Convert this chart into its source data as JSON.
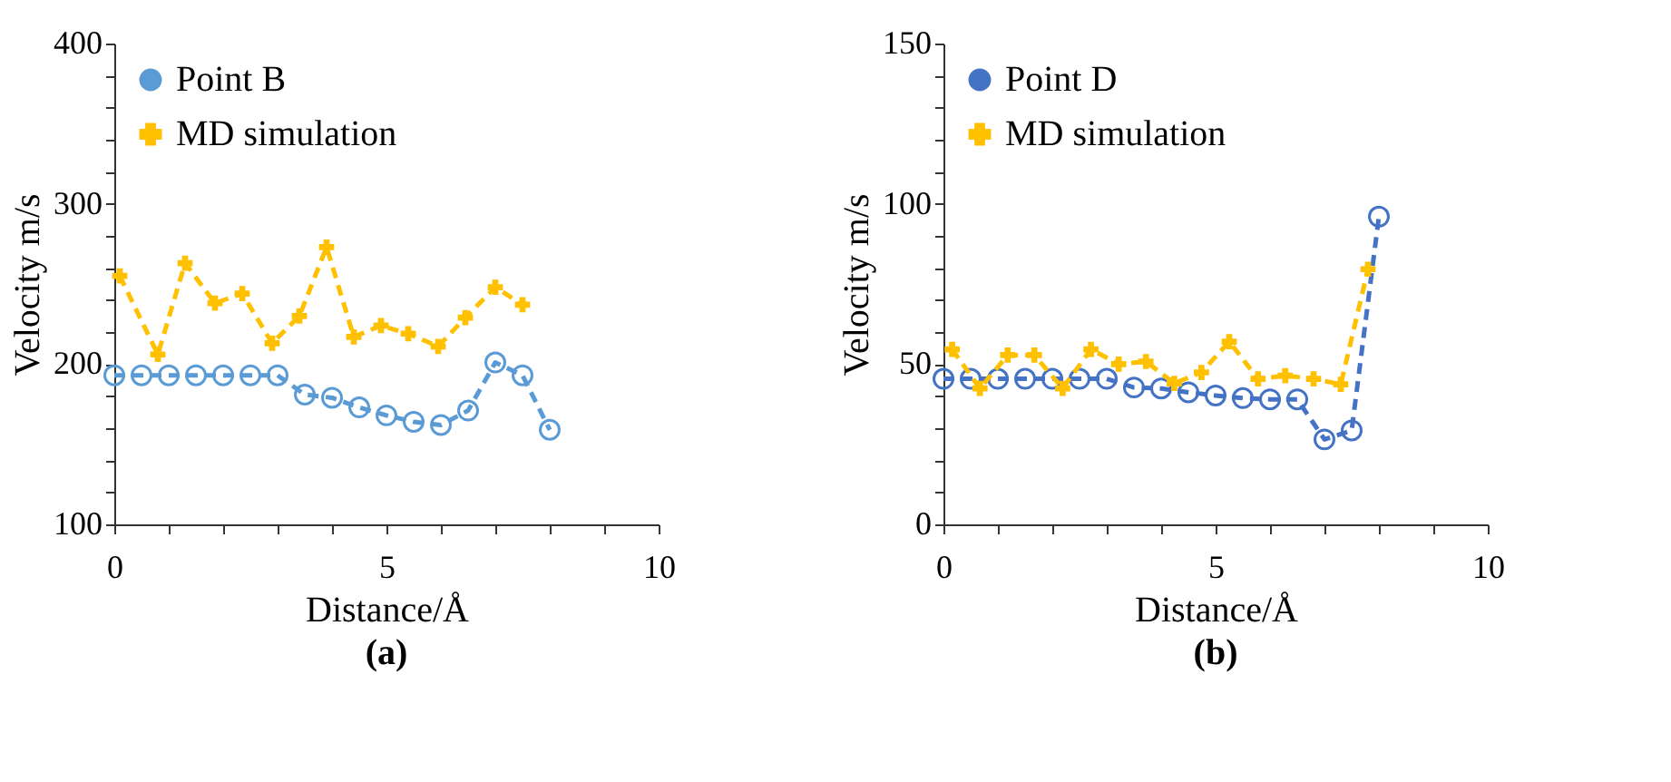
{
  "chart_data": [
    {
      "type": "line",
      "title": "(a)",
      "xlabel": "Distance/Å",
      "ylabel": "Velocity m/s",
      "xlim": [
        0,
        10
      ],
      "ylim": [
        100,
        400
      ],
      "xticks": [
        0,
        {
          "value": 1,
          "label": null
        },
        {
          "value": 2,
          "label": null
        },
        {
          "value": 3,
          "label": null
        },
        {
          "value": 4,
          "label": null
        },
        5,
        {
          "value": 6,
          "label": null
        },
        {
          "value": 7,
          "label": null
        },
        {
          "value": 8,
          "label": null
        },
        {
          "value": 9,
          "label": null
        },
        10
      ],
      "yticks": [
        100,
        {
          "value": 120,
          "label": null
        },
        {
          "value": 140,
          "label": null
        },
        {
          "value": 160,
          "label": null
        },
        {
          "value": 180,
          "label": null
        },
        200,
        {
          "value": 220,
          "label": null
        },
        {
          "value": 240,
          "label": null
        },
        {
          "value": 260,
          "label": null
        },
        {
          "value": 280,
          "label": null
        },
        300,
        {
          "value": 320,
          "label": null
        },
        {
          "value": 340,
          "label": null
        },
        {
          "value": 360,
          "label": null
        },
        {
          "value": 380,
          "label": null
        },
        400
      ],
      "grid": false,
      "legend": "top left",
      "series": [
        {
          "name": "Point B",
          "color": "#5b9bd5",
          "marker": "circle",
          "line_style": "dashed",
          "x": [
            0,
            0.5,
            1,
            1.5,
            2,
            2.5,
            3,
            3.5,
            4,
            4.5,
            5,
            5.5,
            6,
            6.5,
            7,
            7.5,
            8
          ],
          "values": [
            193,
            193,
            193,
            193,
            193,
            193,
            193,
            181,
            179,
            173,
            168,
            164,
            162,
            171,
            201,
            193,
            159
          ]
        },
        {
          "name": "MD simulation",
          "color": "#ffc000",
          "marker": "cross",
          "line_style": "dashed",
          "x": [
            0.1,
            0.8,
            1.3,
            1.85,
            2.35,
            2.9,
            3.4,
            3.9,
            4.4,
            4.9,
            5.4,
            5.95,
            6.45,
            7.0,
            7.5
          ],
          "values": [
            255,
            206,
            263,
            238,
            244,
            213,
            230,
            273,
            217,
            224,
            219,
            211,
            229,
            248,
            237
          ]
        }
      ]
    },
    {
      "type": "line",
      "title": "(b)",
      "xlabel": "Distance/Å",
      "ylabel": "Velocity m/s",
      "xlim": [
        0,
        10
      ],
      "ylim": [
        0,
        150
      ],
      "xticks": [
        0,
        {
          "value": 1,
          "label": null
        },
        {
          "value": 2,
          "label": null
        },
        {
          "value": 3,
          "label": null
        },
        {
          "value": 4,
          "label": null
        },
        5,
        {
          "value": 6,
          "label": null
        },
        {
          "value": 7,
          "label": null
        },
        {
          "value": 8,
          "label": null
        },
        {
          "value": 9,
          "label": null
        },
        10
      ],
      "yticks": [
        0,
        {
          "value": 10,
          "label": null
        },
        {
          "value": 20,
          "label": null
        },
        {
          "value": 30,
          "label": null
        },
        {
          "value": 40,
          "label": null
        },
        50,
        {
          "value": 60,
          "label": null
        },
        {
          "value": 70,
          "label": null
        },
        {
          "value": 80,
          "label": null
        },
        {
          "value": 90,
          "label": null
        },
        100,
        {
          "value": 110,
          "label": null
        },
        {
          "value": 120,
          "label": null
        },
        {
          "value": 130,
          "label": null
        },
        {
          "value": 140,
          "label": null
        },
        150
      ],
      "grid": false,
      "legend": "top left",
      "series": [
        {
          "name": "Point D",
          "color": "#4472c4",
          "marker": "circle",
          "line_style": "dashed",
          "x": [
            0,
            0.5,
            1,
            1.5,
            2,
            2.5,
            3,
            3.5,
            4,
            4.5,
            5,
            5.5,
            6,
            6.5,
            7,
            7.5,
            8
          ],
          "values": [
            45.4,
            45.4,
            45.4,
            45.4,
            45.4,
            45.4,
            45.4,
            42.7,
            42.4,
            41.2,
            40.2,
            39.4,
            39,
            39,
            26.5,
            29.3,
            96
          ]
        },
        {
          "name": "MD simulation",
          "color": "#ffc000",
          "marker": "cross",
          "line_style": "dashed",
          "x": [
            0.16,
            0.67,
            1.18,
            1.67,
            2.19,
            2.71,
            3.22,
            3.72,
            4.24,
            4.74,
            5.25,
            5.78,
            6.28,
            6.8,
            7.3,
            7.8
          ],
          "values": [
            54.6,
            42.4,
            52.8,
            52.8,
            42.4,
            54.6,
            50,
            50.8,
            44,
            47.4,
            57,
            45.4,
            46.4,
            45.4,
            43.7,
            79.6
          ]
        }
      ]
    }
  ]
}
